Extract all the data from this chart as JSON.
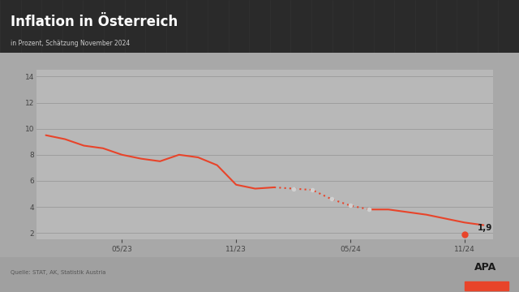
{
  "title": "Inflation in Österreich",
  "subtitle": "in Prozent, Schätzung November 2024",
  "source_text": "Quelle: STAT, AK, Statistik Austria",
  "bg_color": "#a8a8a8",
  "plot_bg_color": "#b8b8b8",
  "line_color": "#e8442a",
  "highlight_color": "#e8442a",
  "title_color": "#1a1a1a",
  "subtitle_color": "#333333",
  "tick_color": "#444444",
  "grid_color": "#999999",
  "ylim": [
    1.5,
    14.5
  ],
  "yticks": [
    2,
    4,
    6,
    8,
    10,
    12,
    14
  ],
  "xtick_labels": [
    "05/23",
    "11/23",
    "05/24",
    "11/24"
  ],
  "xtick_positions": [
    4,
    10,
    16,
    22
  ],
  "highlight_annotation": "1,9",
  "data_x": [
    0,
    1,
    2,
    3,
    4,
    5,
    6,
    7,
    8,
    9,
    10,
    11,
    12,
    13,
    14,
    15,
    16,
    17,
    18,
    19,
    20,
    21,
    22,
    23
  ],
  "data_y": [
    9.5,
    9.2,
    8.7,
    8.5,
    8.0,
    7.7,
    7.5,
    8.0,
    7.8,
    7.2,
    5.7,
    5.4,
    5.5,
    5.4,
    5.3,
    4.6,
    4.1,
    3.8,
    3.8,
    3.6,
    3.4,
    3.1,
    2.8,
    2.6
  ],
  "highlight_x": 22,
  "highlight_y": 1.9,
  "dots_x": [
    13,
    14,
    15,
    16,
    17
  ],
  "dots_y": [
    5.4,
    5.3,
    4.6,
    4.1,
    3.8
  ],
  "main_line_end_x": 21,
  "footer_bg": "#a0a0a0"
}
